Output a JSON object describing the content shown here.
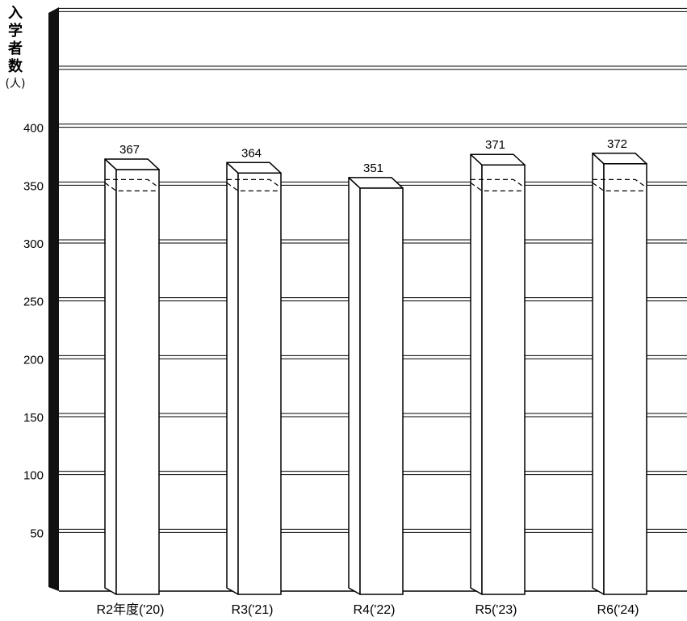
{
  "chart_data": {
    "type": "bar",
    "title": "",
    "ylabel": "入学者数",
    "yunit": "(人)",
    "xlabel": "",
    "categories": [
      "R2年度('20)",
      "R3('21)",
      "R4('22)",
      "R5('23)",
      "R6('24)"
    ],
    "values": [
      367,
      364,
      351,
      371,
      372
    ],
    "data_labels": [
      "367",
      "364",
      "351",
      "371",
      "372"
    ],
    "yticks": [
      50,
      100,
      150,
      200,
      250,
      300,
      350,
      400
    ],
    "ytick_labels": [
      "50",
      "100",
      "150",
      "200",
      "250",
      "300",
      "350",
      "400"
    ],
    "ylim": [
      0,
      450
    ],
    "grid": true,
    "style": "3d-box"
  }
}
